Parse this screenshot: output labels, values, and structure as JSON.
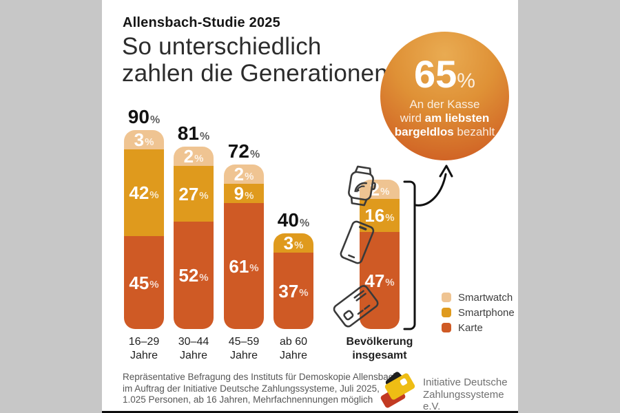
{
  "header": {
    "kicker": "Allensbach-Studie 2025",
    "title_line1": "So unterschiedlich",
    "title_line2": "zahlen die Generationen"
  },
  "highlight": {
    "value": "65",
    "percent_sign": "%",
    "line1": "An der Kasse",
    "line2_pre": "wird ",
    "line2_bold": "am liebsten",
    "line3_bold": "bargeldlos",
    "line3_post": " bezahlt"
  },
  "chart_data": {
    "type": "bar",
    "stacked": true,
    "unit": "%",
    "title": "So unterschiedlich zahlen die Generationen",
    "categories": [
      "16–29 Jahre",
      "30–44 Jahre",
      "45–59 Jahre",
      "ab 60 Jahre",
      "Bevölkerung insgesamt"
    ],
    "category_labels": [
      [
        "16–29",
        "Jahre"
      ],
      [
        "30–44",
        "Jahre"
      ],
      [
        "45–59",
        "Jahre"
      ],
      [
        "ab 60",
        "Jahre"
      ],
      [
        "Bevölkerung",
        "insgesamt"
      ]
    ],
    "series": [
      {
        "name": "Smartwatch",
        "color": "#efc492",
        "values": [
          3,
          2,
          2,
          null,
          2
        ]
      },
      {
        "name": "Smartphone",
        "color": "#df9a1d",
        "values": [
          42,
          27,
          9,
          3,
          16
        ]
      },
      {
        "name": "Karte",
        "color": "#cf5a25",
        "values": [
          45,
          52,
          61,
          37,
          47
        ]
      }
    ],
    "totals": [
      90,
      81,
      72,
      40,
      null
    ],
    "legend": [
      "Smartwatch",
      "Smartphone",
      "Karte"
    ],
    "legend_position": "right-bottom",
    "grid": false
  },
  "footer": {
    "source_lines": [
      "Repräsentative Befragung des Instituts für Demoskopie Allensbach",
      "im Auftrag der Initiative Deutsche Zahlungssysteme, Juli 2025,",
      "1.025 Personen, ab 16 Jahren, Mehrfachnennungen möglich"
    ],
    "logo_line1": "Initiative Deutsche",
    "logo_line2": "Zahlungssysteme e.V."
  }
}
